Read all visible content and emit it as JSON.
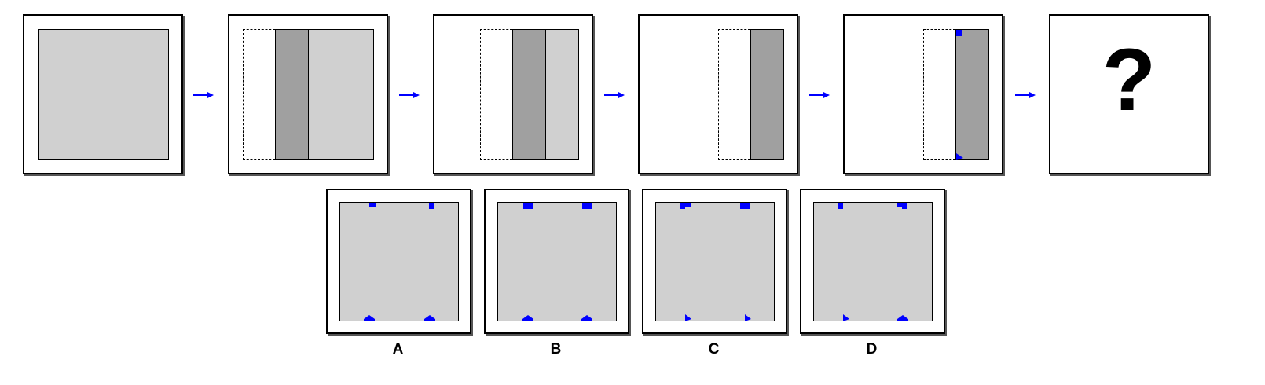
{
  "colors": {
    "fold_light": "#d0d0d0",
    "fold_dark": "#a0a0a0",
    "arrow": "#0000ff",
    "punch": "#0000ff"
  },
  "sequence": {
    "question_mark": "?"
  },
  "options": [
    {
      "label": "A"
    },
    {
      "label": "B"
    },
    {
      "label": "C"
    },
    {
      "label": "D"
    }
  ]
}
